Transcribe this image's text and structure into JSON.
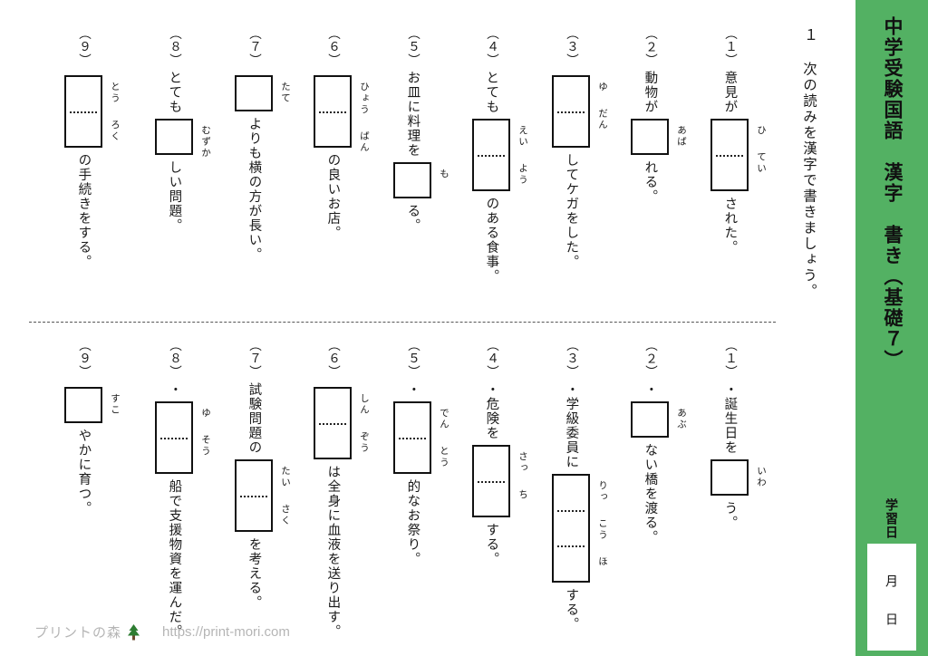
{
  "page": {
    "background": "#ffffff",
    "accent_green": "#53b163",
    "text_color": "#1a1a1a"
  },
  "sidebar": {
    "title": "中学受験国語　漢字　書き（基礎７）",
    "study_date_label": "学習日",
    "month_label": "月",
    "day_label": "日"
  },
  "header": {
    "number": "１",
    "instruction": "次の読みを漢字で書きましょう。"
  },
  "sections": [
    {
      "name": "top",
      "questions": [
        {
          "number": "（１）",
          "pre": "意見が",
          "reading": "ひ てい",
          "post": "された。",
          "box_cells": 2
        },
        {
          "number": "（２）",
          "pre": "動物が",
          "reading": "あば",
          "post": "れる。",
          "box_cells": 1
        },
        {
          "number": "（３）",
          "pre": "",
          "reading": "ゆ だん",
          "post": "してケガをした。",
          "box_cells": 2
        },
        {
          "number": "（４）",
          "pre": "とても",
          "reading": "えい よう",
          "post": "のある食事。",
          "box_cells": 2
        },
        {
          "number": "（５）",
          "pre": "お皿に料理を",
          "reading": "も",
          "post": "る。",
          "box_cells": 1
        },
        {
          "number": "（６）",
          "pre": "",
          "reading": "ひょう ばん",
          "post": "の良いお店。",
          "box_cells": 2
        },
        {
          "number": "（７）",
          "pre": "",
          "reading": "たて",
          "post": "よりも横の方が長い。",
          "box_cells": 1
        },
        {
          "number": "（８）",
          "pre": "とても",
          "reading": "むずか",
          "post": "しい問題。",
          "box_cells": 1
        },
        {
          "number": "（９）",
          "pre": "",
          "reading": "とう ろく",
          "post": "の手続きをする。",
          "box_cells": 2
        }
      ]
    },
    {
      "name": "bottom",
      "questions": [
        {
          "number": "（１）",
          "pre": "・誕生日を",
          "reading": "いわ",
          "post": "う。",
          "box_cells": 1
        },
        {
          "number": "（２）",
          "pre": "・",
          "reading": "あぶ",
          "post": "ない橋を渡る。",
          "box_cells": 1
        },
        {
          "number": "（３）",
          "pre": "・学級委員に",
          "reading": "りっ こう ほ",
          "post": "する。",
          "box_cells": 3
        },
        {
          "number": "（４）",
          "pre": "・危険を",
          "reading": "さっ ち",
          "post": "する。",
          "box_cells": 2
        },
        {
          "number": "（５）",
          "pre": "・",
          "reading": "でん とう",
          "post": "的なお祭り。",
          "box_cells": 2
        },
        {
          "number": "（６）",
          "pre": "",
          "reading": "しん ぞう",
          "post": "は全身に血液を送り出す。",
          "box_cells": 2
        },
        {
          "number": "（７）",
          "pre": "試験問題の",
          "reading": "たい さく",
          "post": "を考える。",
          "box_cells": 2
        },
        {
          "number": "（８）",
          "pre": "・",
          "reading": "ゆ そう",
          "post": "船で支援物資を運んだ。",
          "box_cells": 2
        },
        {
          "number": "（９）",
          "pre": "",
          "reading": "すこ",
          "post": "やかに育つ。",
          "box_cells": 1
        }
      ]
    }
  ],
  "footer": {
    "site_name": "プリントの森",
    "url": "https://print-mori.com"
  }
}
